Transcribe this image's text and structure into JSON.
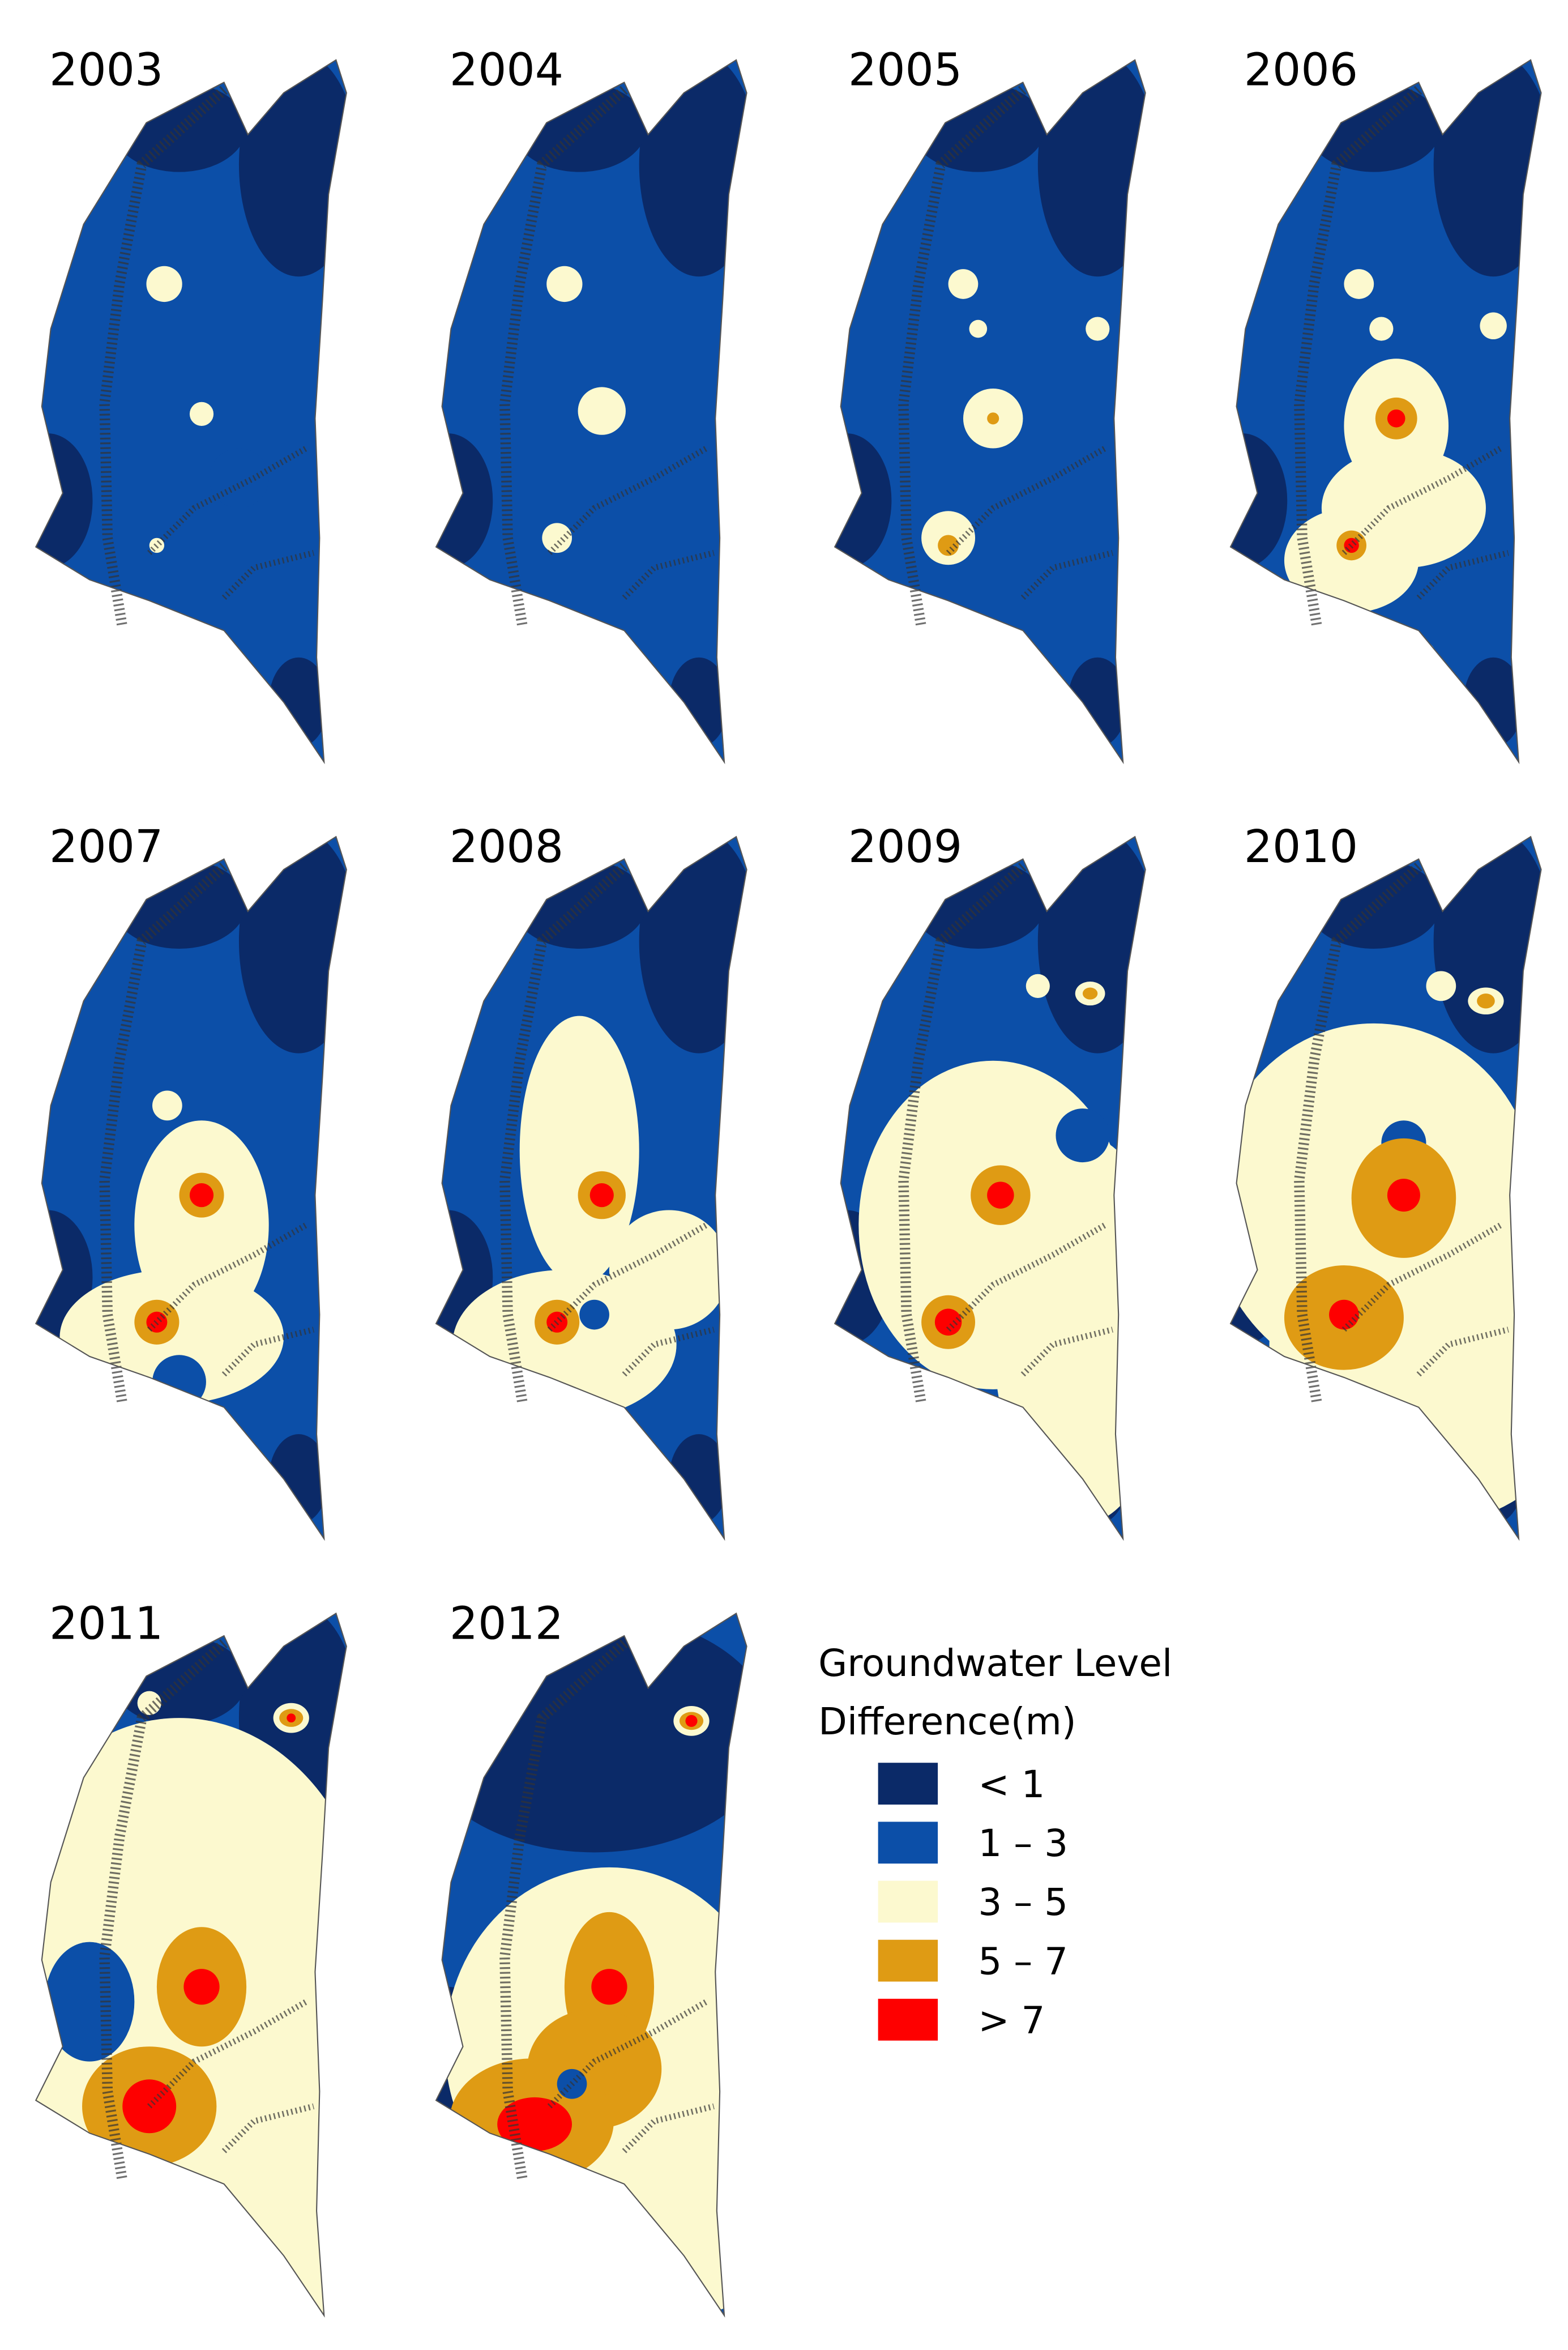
{
  "panels": [
    {
      "year": "2003"
    },
    {
      "year": "2004"
    },
    {
      "year": "2005"
    },
    {
      "year": "2006"
    },
    {
      "year": "2007"
    },
    {
      "year": "2008"
    },
    {
      "year": "2009"
    },
    {
      "year": "2010"
    },
    {
      "year": "2011"
    },
    {
      "year": "2012"
    }
  ],
  "legend": {
    "title_lines": [
      "Groundwater Level",
      "Difference(m)"
    ],
    "items": [
      {
        "label": "<  1",
        "color": "#0b2a68"
      },
      {
        "label": "1 – 3",
        "color": "#0c4fa8"
      },
      {
        "label": "3 – 5",
        "color": "#fcf9cf"
      },
      {
        "label": "5 – 7",
        "color": "#df9b14"
      },
      {
        "label": ">  7",
        "color": "#fe0000"
      }
    ]
  }
}
